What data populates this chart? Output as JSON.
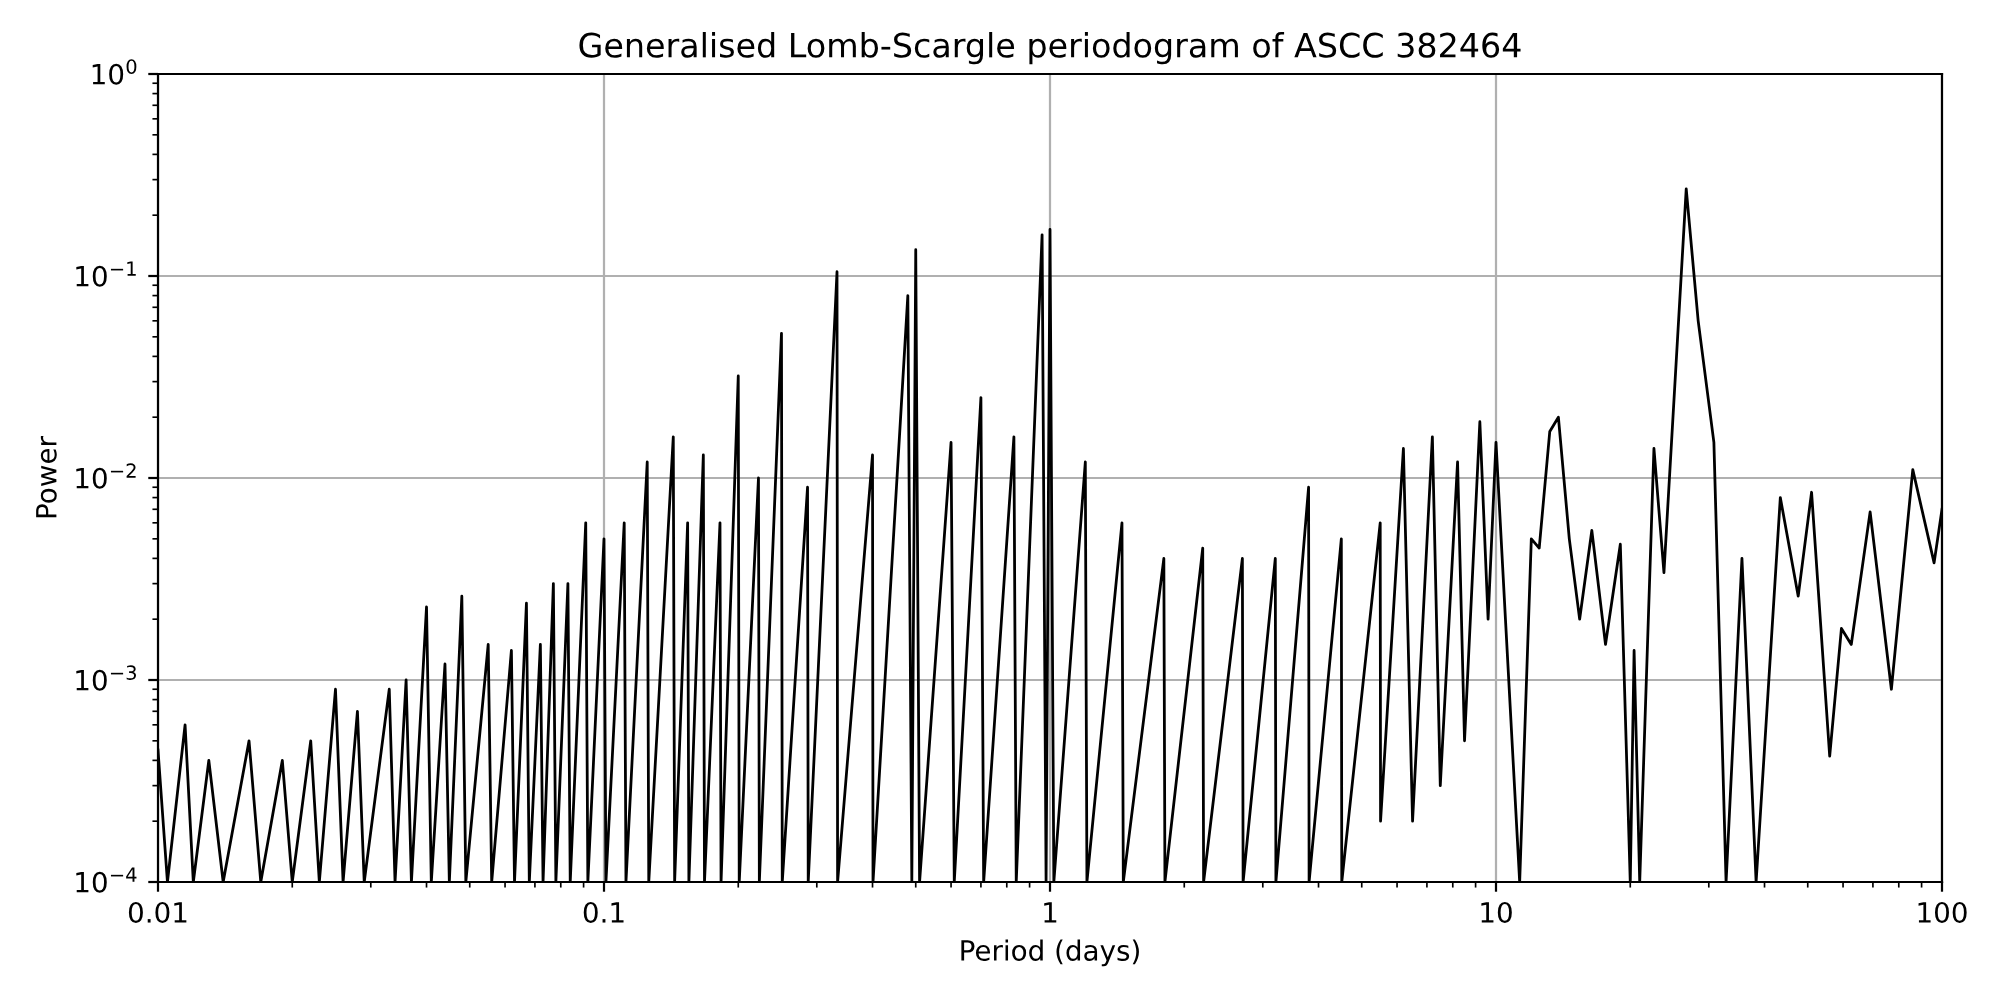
{
  "chart_data": {
    "type": "line",
    "title": "Generalised Lomb-Scargle periodogram of ASCC 382464",
    "xlabel": "Period (days)",
    "ylabel": "Power",
    "log": "xy",
    "grid": true,
    "xlim": [
      0.01,
      100
    ],
    "xticks": [
      0.01,
      0.1,
      1,
      10,
      100
    ],
    "ylim": [
      0.0001,
      1
    ],
    "yticks": [
      {
        "value": 0.0001,
        "label": "10$^{−4}$"
      },
      {
        "value": 0.001,
        "label": "10$^{−3}$"
      },
      {
        "value": 0.01,
        "label": "10$^{−2}$"
      },
      {
        "value": 0.1,
        "label": "10$^{−1}$"
      },
      {
        "value": 1,
        "label": "10$^{0}$"
      }
    ],
    "series": [
      {
        "color": "#000000",
        "x": [
          0.01,
          0.0105,
          0.0115,
          0.012,
          0.013,
          0.014,
          0.016,
          0.017,
          0.019,
          0.02,
          0.022,
          0.023,
          0.025,
          0.026,
          0.028,
          0.029,
          0.033,
          0.034,
          0.036,
          0.037,
          0.04,
          0.041,
          0.044,
          0.045,
          0.048,
          0.049,
          0.055,
          0.056,
          0.062,
          0.063,
          0.067,
          0.068,
          0.072,
          0.073,
          0.077,
          0.078,
          0.083,
          0.084,
          0.091,
          0.092,
          0.1,
          0.101,
          0.111,
          0.112,
          0.125,
          0.126,
          0.143,
          0.144,
          0.154,
          0.155,
          0.167,
          0.168,
          0.182,
          0.183,
          0.2,
          0.201,
          0.222,
          0.223,
          0.25,
          0.251,
          0.286,
          0.287,
          0.333,
          0.334,
          0.4,
          0.401,
          0.48,
          0.49,
          0.5,
          0.51,
          0.6,
          0.61,
          0.7,
          0.71,
          0.83,
          0.84,
          0.96,
          0.98,
          1.0,
          1.02,
          1.2,
          1.21,
          1.45,
          1.46,
          1.8,
          1.81,
          2.2,
          2.21,
          2.7,
          2.71,
          3.2,
          3.21,
          3.8,
          3.81,
          4.5,
          4.51,
          5.5,
          5.51,
          6.2,
          6.5,
          7.2,
          7.5,
          8.2,
          8.5,
          9.2,
          9.6,
          10,
          10.5,
          11.3,
          12.0,
          12.5,
          13.2,
          13.8,
          14.6,
          15.4,
          16.4,
          17.6,
          19.0,
          20,
          20.4,
          21,
          22.6,
          23.8,
          26.7,
          28.4,
          30.8,
          32.8,
          35.6,
          38.3,
          43.4,
          47.6,
          51,
          56,
          59.5,
          62.6,
          69,
          77,
          86,
          96,
          100
        ],
        "values": [
          0.00045,
          0.0001,
          0.0006,
          0.0001,
          0.0004,
          0.0001,
          0.0005,
          0.0001,
          0.0004,
          0.0001,
          0.0005,
          0.0001,
          0.0009,
          0.0001,
          0.0007,
          0.0001,
          0.0009,
          0.0001,
          0.001,
          0.0001,
          0.0023,
          0.0001,
          0.0012,
          0.0001,
          0.0026,
          0.0001,
          0.0015,
          0.0001,
          0.0014,
          0.0001,
          0.0024,
          0.0001,
          0.0015,
          0.0001,
          0.003,
          0.0001,
          0.003,
          0.0001,
          0.006,
          0.0001,
          0.005,
          0.0001,
          0.006,
          0.0001,
          0.012,
          0.0001,
          0.016,
          0.0001,
          0.006,
          0.0001,
          0.013,
          0.0001,
          0.006,
          0.0001,
          0.032,
          0.0001,
          0.01,
          0.0001,
          0.052,
          0.0001,
          0.009,
          0.0001,
          0.105,
          0.0001,
          0.013,
          0.0001,
          0.08,
          0.0001,
          0.135,
          0.0001,
          0.015,
          0.0001,
          0.025,
          0.0001,
          0.016,
          0.0001,
          0.16,
          0.0001,
          0.17,
          0.0001,
          0.012,
          0.0001,
          0.006,
          0.0001,
          0.004,
          0.0001,
          0.0045,
          0.0001,
          0.004,
          0.0001,
          0.004,
          0.0001,
          0.009,
          0.0001,
          0.005,
          0.0001,
          0.006,
          0.0002,
          0.014,
          0.0002,
          0.016,
          0.0003,
          0.012,
          0.0005,
          0.019,
          0.002,
          0.015,
          0.002,
          0.0001,
          0.005,
          0.0045,
          0.017,
          0.02,
          0.005,
          0.002,
          0.0055,
          0.0015,
          0.0047,
          0.0001,
          0.0014,
          0.0001,
          0.014,
          0.0034,
          0.27,
          0.06,
          0.015,
          0.0001,
          0.004,
          0.0001,
          0.008,
          0.0026,
          0.0085,
          0.00042,
          0.0018,
          0.0015,
          0.0068,
          0.0009,
          0.011,
          0.0038,
          0.007
        ]
      }
    ]
  }
}
